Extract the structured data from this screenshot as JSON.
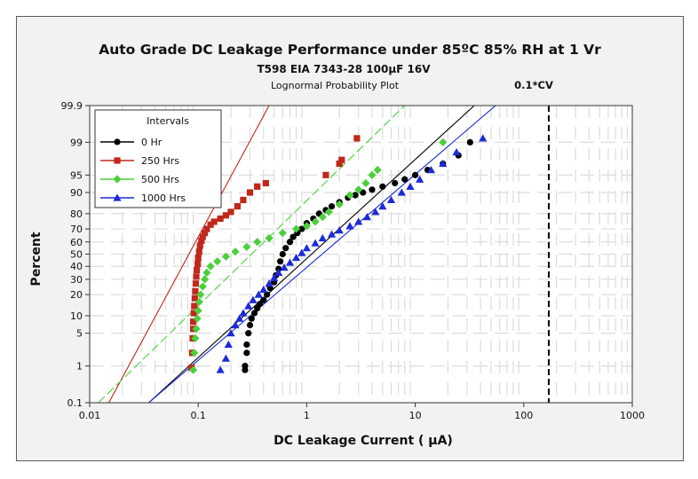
{
  "chart_data": {
    "type": "scatter",
    "title": "Auto Grade DC Leakage Performance under 85ºC 85% RH at 1 Vr",
    "subtitle": "T598 EIA 7343-28 100µF 16V",
    "plot_label": "Lognormal Probability Plot",
    "xlabel": "DC Leakage Current ( µA)",
    "ylabel": "Percent",
    "x_scale": "log",
    "y_scale": "lognormal-probability",
    "xlim": [
      0.01,
      1000
    ],
    "ylim": [
      0.1,
      99.9
    ],
    "x_ticks": [
      0.01,
      0.1,
      1,
      10,
      100,
      1000
    ],
    "x_tick_labels": [
      "0.01",
      "0.1",
      "1",
      "10",
      "100",
      "1000"
    ],
    "y_ticks": [
      0.1,
      1,
      5,
      10,
      20,
      30,
      40,
      50,
      60,
      70,
      80,
      90,
      95,
      99,
      99.9
    ],
    "y_tick_labels": [
      "0.1",
      "1",
      "5",
      "10",
      "20",
      "30",
      "40",
      "50",
      "60",
      "70",
      "80",
      "90",
      "95",
      "99",
      "99.9"
    ],
    "legend": {
      "title": "Intervals",
      "placement": "top-left"
    },
    "reference_line": {
      "x": 170,
      "label": "0.1*CV"
    },
    "series": [
      {
        "name": "0 Hr",
        "color": "#000000",
        "marker": "circle",
        "fit": [
          [
            0.035,
            0.1
          ],
          [
            35,
            99.9
          ]
        ],
        "points": [
          [
            0.27,
            0.8
          ],
          [
            0.27,
            1
          ],
          [
            0.28,
            2
          ],
          [
            0.28,
            3
          ],
          [
            0.29,
            5
          ],
          [
            0.3,
            7
          ],
          [
            0.31,
            9
          ],
          [
            0.33,
            11
          ],
          [
            0.35,
            13
          ],
          [
            0.37,
            15
          ],
          [
            0.4,
            17
          ],
          [
            0.43,
            20
          ],
          [
            0.46,
            24
          ],
          [
            0.5,
            28
          ],
          [
            0.52,
            33
          ],
          [
            0.55,
            38
          ],
          [
            0.57,
            44
          ],
          [
            0.6,
            50
          ],
          [
            0.64,
            55
          ],
          [
            0.7,
            60
          ],
          [
            0.75,
            64
          ],
          [
            0.82,
            67
          ],
          [
            0.9,
            70
          ],
          [
            1.0,
            74
          ],
          [
            1.15,
            77
          ],
          [
            1.3,
            80
          ],
          [
            1.5,
            82
          ],
          [
            1.7,
            84
          ],
          [
            2.0,
            86
          ],
          [
            2.4,
            88
          ],
          [
            2.8,
            89
          ],
          [
            3.3,
            90
          ],
          [
            4.0,
            91
          ],
          [
            5.0,
            92
          ],
          [
            6.5,
            93
          ],
          [
            8.0,
            94
          ],
          [
            10,
            95
          ],
          [
            13,
            96
          ],
          [
            18,
            97
          ],
          [
            25,
            98
          ],
          [
            32,
            99
          ]
        ]
      },
      {
        "name": "250 Hrs",
        "color": "#c0281c",
        "marker": "square",
        "fit": [
          [
            0.015,
            0.1
          ],
          [
            0.45,
            99.9
          ]
        ],
        "points": [
          [
            0.087,
            0.9
          ],
          [
            0.088,
            2
          ],
          [
            0.089,
            4
          ],
          [
            0.09,
            6
          ],
          [
            0.09,
            8
          ],
          [
            0.091,
            11
          ],
          [
            0.092,
            14
          ],
          [
            0.093,
            18
          ],
          [
            0.094,
            22
          ],
          [
            0.095,
            27
          ],
          [
            0.096,
            32
          ],
          [
            0.097,
            37
          ],
          [
            0.099,
            42
          ],
          [
            0.1,
            47
          ],
          [
            0.102,
            52
          ],
          [
            0.104,
            57
          ],
          [
            0.107,
            61
          ],
          [
            0.11,
            64
          ],
          [
            0.115,
            67
          ],
          [
            0.12,
            70
          ],
          [
            0.13,
            73
          ],
          [
            0.14,
            75
          ],
          [
            0.16,
            77
          ],
          [
            0.18,
            79
          ],
          [
            0.2,
            81
          ],
          [
            0.23,
            84
          ],
          [
            0.26,
            87
          ],
          [
            0.3,
            90
          ],
          [
            0.35,
            92
          ],
          [
            0.42,
            93
          ],
          [
            1.5,
            95
          ],
          [
            2.0,
            97
          ],
          [
            2.1,
            97.5
          ],
          [
            2.9,
            99.2
          ]
        ]
      },
      {
        "name": "500 Hrs",
        "color": "#4ccf3c",
        "marker": "diamond",
        "fit": [
          [
            0.012,
            0.1
          ],
          [
            8,
            99.9
          ]
        ],
        "points": [
          [
            0.09,
            0.8
          ],
          [
            0.092,
            2
          ],
          [
            0.094,
            4
          ],
          [
            0.096,
            6
          ],
          [
            0.098,
            9
          ],
          [
            0.1,
            12
          ],
          [
            0.102,
            16
          ],
          [
            0.105,
            20
          ],
          [
            0.11,
            25
          ],
          [
            0.115,
            30
          ],
          [
            0.12,
            35
          ],
          [
            0.13,
            40
          ],
          [
            0.15,
            44
          ],
          [
            0.18,
            48
          ],
          [
            0.22,
            52
          ],
          [
            0.28,
            56
          ],
          [
            0.35,
            60
          ],
          [
            0.45,
            63
          ],
          [
            0.6,
            67
          ],
          [
            0.8,
            70
          ],
          [
            1.0,
            72
          ],
          [
            1.2,
            75
          ],
          [
            1.4,
            78
          ],
          [
            1.6,
            81
          ],
          [
            2.0,
            85
          ],
          [
            2.5,
            89
          ],
          [
            3.0,
            91
          ],
          [
            3.5,
            93
          ],
          [
            4.0,
            95
          ],
          [
            4.5,
            96
          ],
          [
            18,
            99
          ]
        ]
      },
      {
        "name": "1000 Hrs",
        "color": "#1c2ad8",
        "marker": "triangle",
        "fit": [
          [
            0.035,
            0.1
          ],
          [
            55,
            99.9
          ]
        ],
        "points": [
          [
            0.16,
            0.8
          ],
          [
            0.18,
            1.5
          ],
          [
            0.19,
            3
          ],
          [
            0.2,
            5
          ],
          [
            0.22,
            7
          ],
          [
            0.24,
            9
          ],
          [
            0.26,
            11
          ],
          [
            0.29,
            14
          ],
          [
            0.32,
            17
          ],
          [
            0.36,
            20
          ],
          [
            0.4,
            23
          ],
          [
            0.45,
            27
          ],
          [
            0.5,
            31
          ],
          [
            0.55,
            35
          ],
          [
            0.62,
            39
          ],
          [
            0.7,
            43
          ],
          [
            0.8,
            47
          ],
          [
            0.9,
            51
          ],
          [
            1.0,
            55
          ],
          [
            1.2,
            59
          ],
          [
            1.4,
            63
          ],
          [
            1.7,
            66
          ],
          [
            2.0,
            69
          ],
          [
            2.5,
            72
          ],
          [
            3.0,
            75
          ],
          [
            3.6,
            78
          ],
          [
            4.3,
            81
          ],
          [
            5.0,
            84
          ],
          [
            6.0,
            87
          ],
          [
            7.5,
            90
          ],
          [
            9.0,
            92
          ],
          [
            11,
            94
          ],
          [
            14,
            96
          ],
          [
            18,
            97
          ],
          [
            24,
            98.3
          ],
          [
            42,
            99.2
          ]
        ]
      }
    ]
  }
}
